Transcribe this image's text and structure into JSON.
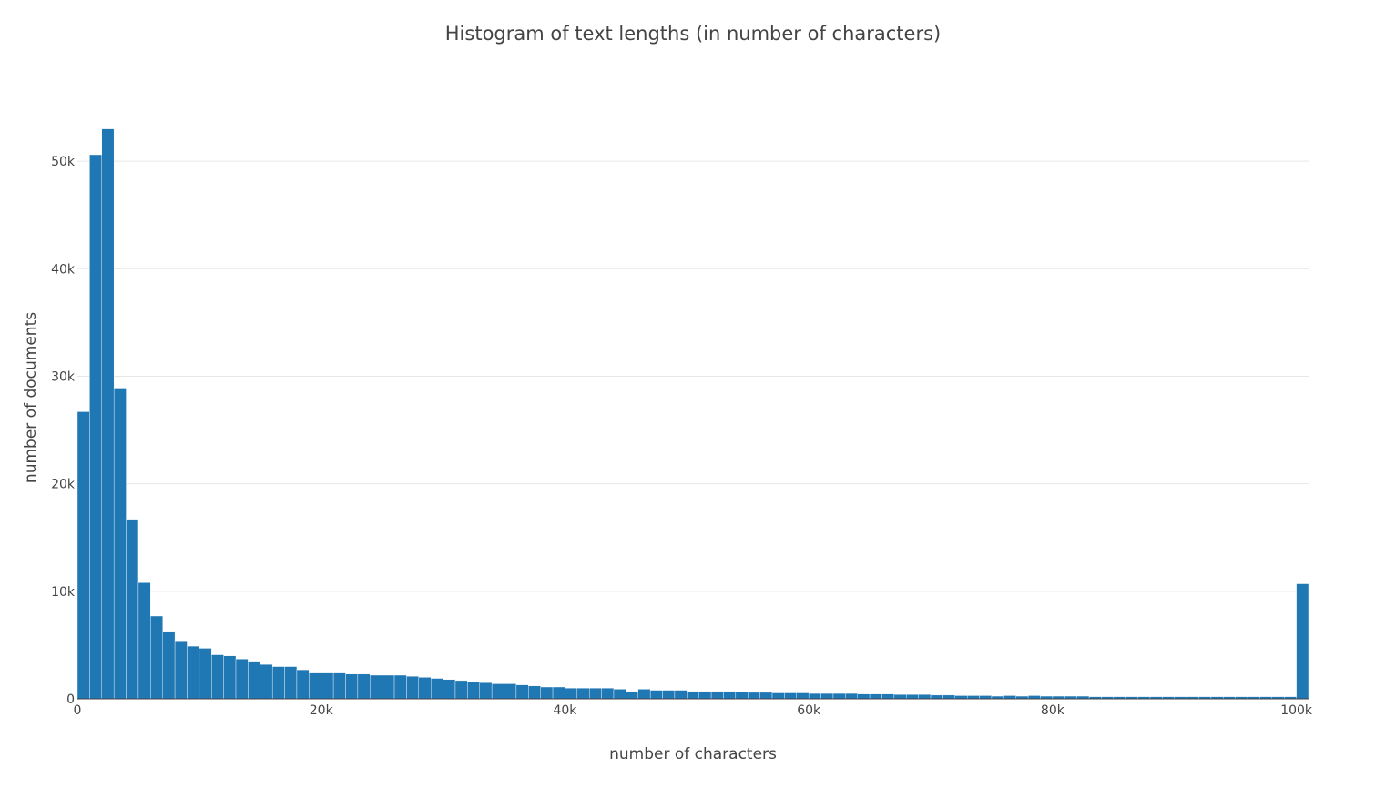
{
  "chart_data": {
    "type": "bar",
    "title": "Histogram of text lengths (in number of characters)",
    "xlabel": "number of characters",
    "ylabel": "number of documents",
    "xlim": [
      0,
      101000
    ],
    "ylim": [
      0,
      55000
    ],
    "x_ticks": [
      {
        "value": 0,
        "label": "0"
      },
      {
        "value": 20000,
        "label": "20k"
      },
      {
        "value": 40000,
        "label": "40k"
      },
      {
        "value": 60000,
        "label": "60k"
      },
      {
        "value": 80000,
        "label": "80k"
      },
      {
        "value": 100000,
        "label": "100k"
      }
    ],
    "y_ticks": [
      {
        "value": 0,
        "label": "0"
      },
      {
        "value": 10000,
        "label": "10k"
      },
      {
        "value": 20000,
        "label": "20k"
      },
      {
        "value": 30000,
        "label": "30k"
      },
      {
        "value": 40000,
        "label": "40k"
      },
      {
        "value": 50000,
        "label": "50k"
      }
    ],
    "bin_size": 1000,
    "bin_start": 0,
    "values": [
      26700,
      50600,
      53000,
      28900,
      16700,
      10800,
      7700,
      6200,
      5400,
      4900,
      4700,
      4100,
      4000,
      3700,
      3500,
      3200,
      3000,
      3000,
      2700,
      2400,
      2400,
      2400,
      2300,
      2300,
      2200,
      2200,
      2200,
      2100,
      2000,
      1900,
      1800,
      1700,
      1600,
      1500,
      1400,
      1400,
      1300,
      1200,
      1100,
      1100,
      1000,
      1000,
      1000,
      1000,
      900,
      700,
      900,
      800,
      800,
      800,
      700,
      700,
      700,
      700,
      650,
      600,
      600,
      550,
      550,
      550,
      500,
      500,
      500,
      500,
      450,
      450,
      450,
      400,
      400,
      400,
      350,
      350,
      300,
      300,
      300,
      250,
      300,
      250,
      300,
      250,
      250,
      250,
      250,
      200,
      200,
      200,
      200,
      200,
      200,
      200,
      200,
      200,
      200,
      200,
      200,
      200,
      200,
      200,
      200,
      200,
      10700
    ],
    "bar_color": "#1f77b4",
    "grid": true,
    "legend": false
  }
}
